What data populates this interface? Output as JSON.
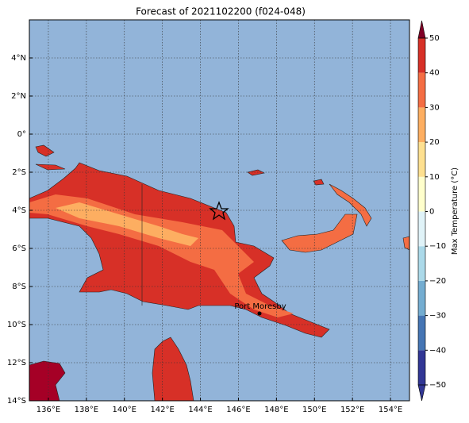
{
  "title": "Forecast of 2021102200 (f024-048)",
  "map": {
    "xlim": [
      135,
      155
    ],
    "ylim": [
      -14,
      6
    ],
    "xticks": [
      {
        "value": 136,
        "label": "136°E"
      },
      {
        "value": 138,
        "label": "138°E"
      },
      {
        "value": 140,
        "label": "140°E"
      },
      {
        "value": 142,
        "label": "142°E"
      },
      {
        "value": 144,
        "label": "144°E"
      },
      {
        "value": 146,
        "label": "146°E"
      },
      {
        "value": 148,
        "label": "148°E"
      },
      {
        "value": 150,
        "label": "150°E"
      },
      {
        "value": 152,
        "label": "152°E"
      },
      {
        "value": 154,
        "label": "154°E"
      }
    ],
    "yticks": [
      {
        "value": 4,
        "label": "4°N"
      },
      {
        "value": 2,
        "label": "2°N"
      },
      {
        "value": 0,
        "label": "0°"
      },
      {
        "value": -2,
        "label": "2°S"
      },
      {
        "value": -4,
        "label": "4°S"
      },
      {
        "value": -6,
        "label": "6°S"
      },
      {
        "value": -8,
        "label": "8°S"
      },
      {
        "value": -10,
        "label": "10°S"
      },
      {
        "value": -12,
        "label": "12°S"
      },
      {
        "value": -14,
        "label": "14°S"
      }
    ],
    "place": "Port Moresby"
  },
  "colorbar": {
    "label": "Max Temperature (°C)",
    "lim": [
      -50,
      50
    ],
    "ticks": [
      {
        "value": -50,
        "label": "−50"
      },
      {
        "value": -40,
        "label": "−40"
      },
      {
        "value": -30,
        "label": "−30"
      },
      {
        "value": -20,
        "label": "−20"
      },
      {
        "value": -10,
        "label": "−10"
      },
      0,
      10,
      20,
      30,
      40,
      50
    ],
    "colors": [
      "#313695",
      "#4575b4",
      "#74add1",
      "#abd9e9",
      "#e0f3f8",
      "#ffffcc",
      "#fee090",
      "#fdae61",
      "#f46d43",
      "#d73027",
      "#a50026"
    ]
  }
}
